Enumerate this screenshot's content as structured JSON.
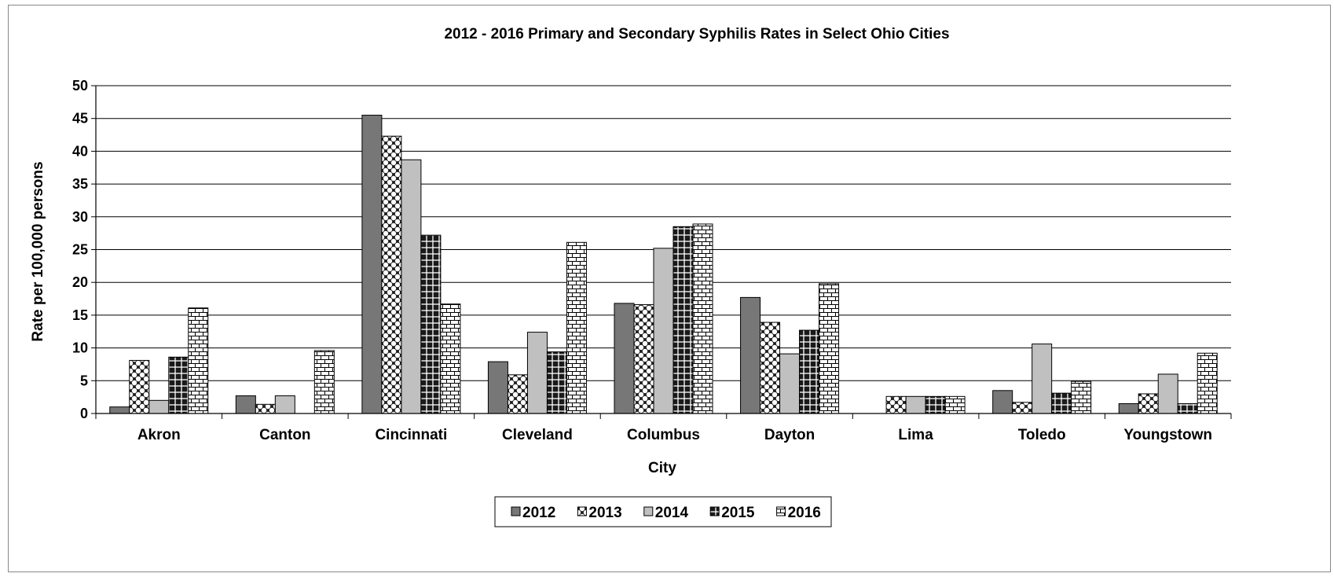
{
  "chart_data": {
    "type": "bar",
    "title": "2012 - 2016 Primary and Secondary Syphilis Rates in Select Ohio Cities",
    "xlabel": "City",
    "ylabel": "Rate per 100,000 persons",
    "ylim": [
      0,
      50
    ],
    "yticks": [
      "0",
      "5",
      "10",
      "15",
      "20",
      "25",
      "30",
      "35",
      "40",
      "45",
      "50"
    ],
    "grid": true,
    "legend_position": "bottom",
    "categories": [
      "Akron",
      "Canton",
      "Cincinnati",
      "Cleveland",
      "Columbus",
      "Dayton",
      "Lima",
      "Toledo",
      "Youngstown"
    ],
    "series": [
      {
        "name": "2012",
        "pattern": "solid-dark",
        "values": [
          1.0,
          2.7,
          45.5,
          7.9,
          16.8,
          17.7,
          0.0,
          3.5,
          1.5
        ]
      },
      {
        "name": "2013",
        "pattern": "diamond",
        "values": [
          8.1,
          1.4,
          42.3,
          5.9,
          16.6,
          13.9,
          2.6,
          1.7,
          3.0
        ]
      },
      {
        "name": "2014",
        "pattern": "solid-light",
        "values": [
          2.0,
          2.7,
          38.7,
          12.4,
          25.2,
          9.1,
          2.6,
          10.6,
          6.0
        ]
      },
      {
        "name": "2015",
        "pattern": "grid",
        "values": [
          8.6,
          0.0,
          27.2,
          9.4,
          28.5,
          12.7,
          2.6,
          3.1,
          1.5
        ]
      },
      {
        "name": "2016",
        "pattern": "brick",
        "values": [
          16.1,
          9.6,
          16.7,
          26.1,
          28.9,
          19.8,
          2.6,
          4.9,
          9.2
        ]
      }
    ],
    "colors": {
      "solid_dark": "#777777",
      "solid_light": "#c0c0c0",
      "pattern_dark": "#1a1a1a",
      "pattern_light": "#ffffff",
      "grid_line": "#000000"
    }
  }
}
